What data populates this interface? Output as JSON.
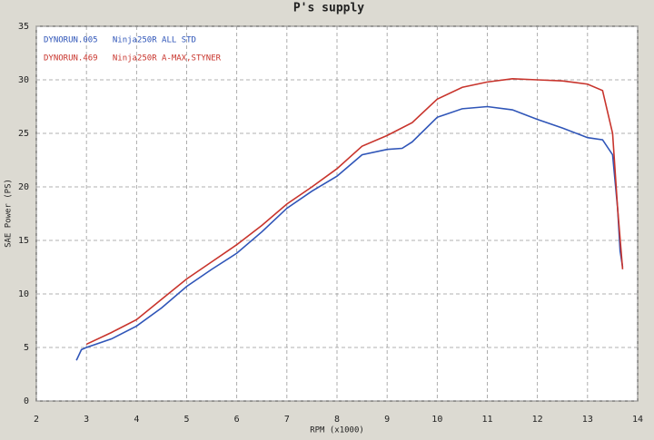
{
  "chart_data": {
    "type": "line",
    "title": "P's supply",
    "xlabel": "RPM (x1000)",
    "ylabel": "SAE Power (PS)",
    "xlim": [
      2,
      14
    ],
    "xticks": [
      2,
      3,
      4,
      5,
      6,
      7,
      8,
      9,
      10,
      11,
      12,
      13,
      14
    ],
    "ylim": [
      0,
      35
    ],
    "yticks": [
      0,
      5,
      10,
      15,
      20,
      25,
      30,
      35
    ],
    "grid": true,
    "legend": "upper left",
    "series": [
      {
        "name": "DYNORUN.005   Ninja250R ALL STD",
        "color": "#2f55b8",
        "x": [
          2.8,
          2.9,
          3.0,
          3.5,
          4.0,
          4.5,
          5.0,
          5.5,
          6.0,
          6.5,
          7.0,
          7.5,
          8.0,
          8.5,
          9.0,
          9.3,
          9.5,
          10.0,
          10.5,
          11.0,
          11.5,
          12.0,
          12.5,
          13.0,
          13.3,
          13.5,
          13.6,
          13.65,
          13.7
        ],
        "values": [
          3.8,
          4.8,
          5.0,
          5.8,
          7.0,
          8.7,
          10.7,
          12.3,
          13.8,
          15.8,
          18.0,
          19.6,
          21.0,
          23.0,
          23.5,
          23.6,
          24.2,
          26.5,
          27.3,
          27.5,
          27.2,
          26.3,
          25.5,
          24.6,
          24.4,
          23.0,
          18.0,
          14.0,
          12.5
        ]
      },
      {
        "name": "DYNORUN.469   Ninja250R A-MAX,STYNER",
        "color": "#c8342c",
        "x": [
          3.0,
          3.5,
          4.0,
          4.5,
          5.0,
          5.5,
          6.0,
          6.5,
          7.0,
          7.5,
          8.0,
          8.5,
          9.0,
          9.5,
          10.0,
          10.5,
          11.0,
          11.5,
          12.0,
          12.5,
          13.0,
          13.3,
          13.5,
          13.6,
          13.7
        ],
        "values": [
          5.3,
          6.4,
          7.6,
          9.5,
          11.4,
          13.0,
          14.6,
          16.4,
          18.4,
          20.0,
          21.7,
          23.8,
          24.8,
          26.0,
          28.2,
          29.3,
          29.8,
          30.1,
          30.0,
          29.9,
          29.6,
          29.0,
          25.0,
          18.0,
          12.3
        ]
      }
    ]
  }
}
